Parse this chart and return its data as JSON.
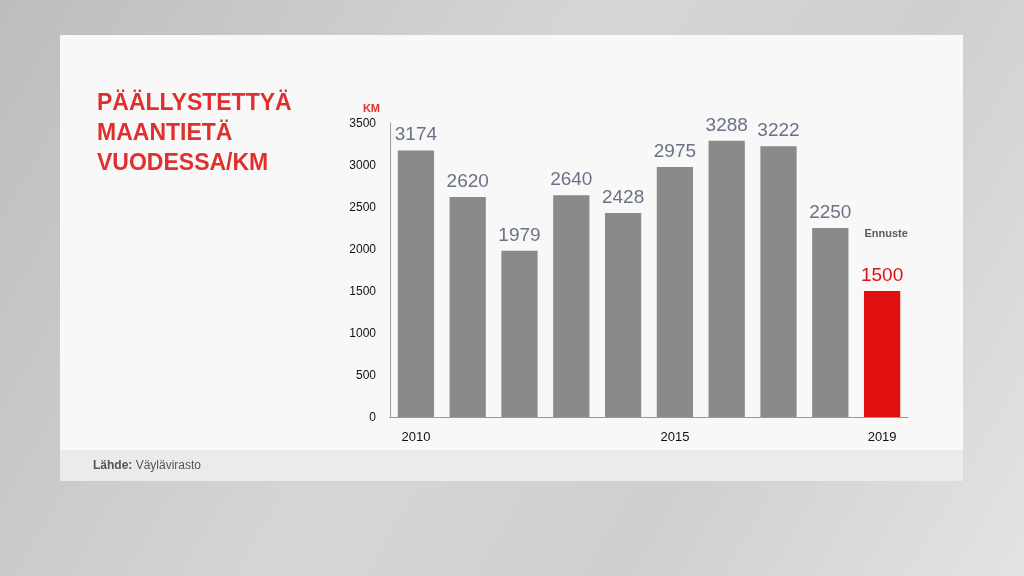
{
  "chart_data": {
    "type": "bar",
    "title": "PÄÄLLYSTETTYÄ MAANTIETÄ VUODESSA/KM",
    "ylabel": "KM",
    "categories": [
      "2010",
      null,
      null,
      null,
      null,
      "2015",
      null,
      null,
      null,
      "2019"
    ],
    "values": [
      3174,
      2620,
      1979,
      2640,
      2428,
      2975,
      3288,
      3222,
      2250,
      1500
    ],
    "colors": [
      "#8b8a8b",
      "#8b8a8b",
      "#8b8a8b",
      "#8b8a8b",
      "#8b8a8b",
      "#8b8a8b",
      "#8b8a8b",
      "#8b8a8b",
      "#8b8a8b",
      "#e01010"
    ],
    "ylim": [
      0,
      3500
    ],
    "yticks": [
      0,
      500,
      1000,
      1500,
      2000,
      2500,
      3000,
      3500
    ],
    "data_labels": true,
    "annotations": [
      "Ennuste",
      "Lähde: Väylävirasto"
    ]
  }
}
